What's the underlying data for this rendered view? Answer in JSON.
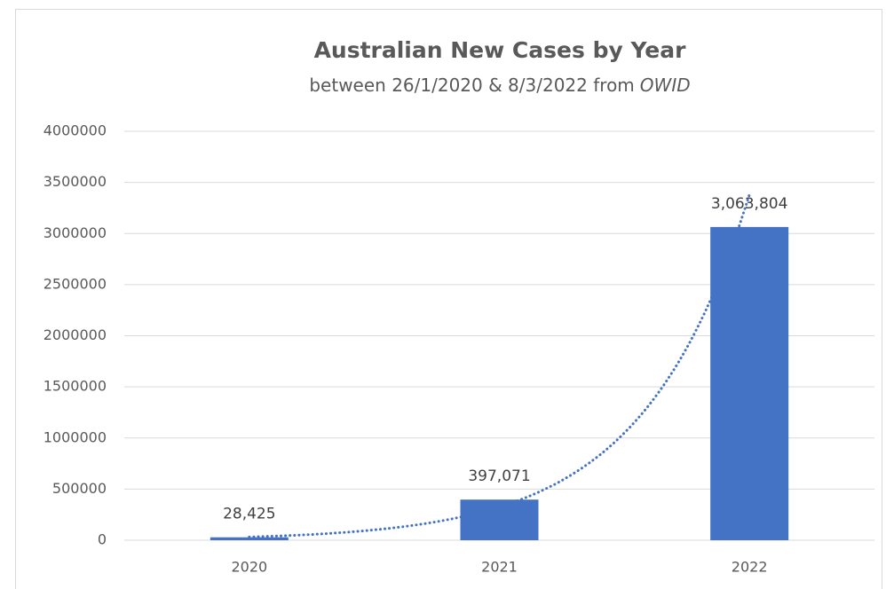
{
  "chart_data": {
    "type": "bar",
    "title": "Australian New Cases by Year",
    "subtitle": "between 26/1/2020 & 8/3/2022 from",
    "subtitle_source": "OWID",
    "categories": [
      "2020",
      "2021",
      "2022"
    ],
    "values": [
      28425,
      397071,
      3063804
    ],
    "value_labels": [
      "28,425",
      "397,071",
      "3,063,804"
    ],
    "color": "#4472c4",
    "trendline": "exponential",
    "ylim": [
      0,
      4000000
    ],
    "yticks": [
      0,
      500000,
      1000000,
      1500000,
      2000000,
      2500000,
      3000000,
      3500000,
      4000000
    ],
    "grid": true
  }
}
